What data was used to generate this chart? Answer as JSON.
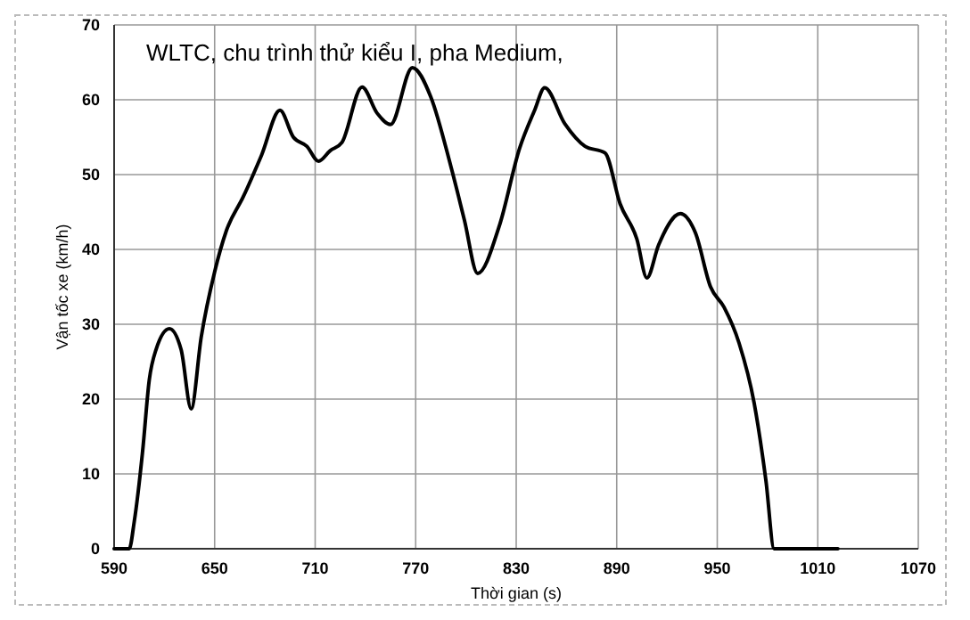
{
  "chart_data": {
    "type": "line",
    "title": "WLTC, chu trình thử kiểu I, pha Medium,",
    "xlabel": "Thời gian (s)",
    "ylabel": "Vận tốc xe (km/h)",
    "x": [
      590,
      599,
      602,
      607,
      611,
      615,
      623,
      630,
      636,
      642,
      650,
      657,
      667,
      678,
      689,
      697,
      705,
      712,
      719,
      726,
      738,
      747,
      755,
      768,
      779,
      791,
      799,
      807,
      820,
      832,
      841,
      847,
      859,
      871,
      883,
      892,
      902,
      908,
      915,
      928,
      937,
      946,
      954,
      963,
      972,
      979,
      984,
      1022
    ],
    "series": [
      {
        "color": "#000000",
        "values": [
          0,
          0,
          3.6,
          13,
          22.6,
          26.6,
          29.4,
          26.6,
          18.7,
          28.3,
          37,
          42.5,
          47,
          52.6,
          58.6,
          55,
          53.8,
          51.8,
          53.2,
          54.3,
          61.7,
          58.2,
          56.7,
          64.3,
          60.4,
          51.1,
          44,
          36.8,
          43.2,
          53.5,
          58.6,
          61.6,
          56.8,
          53.8,
          52.9,
          46.1,
          41.4,
          36.2,
          40.6,
          44.8,
          42.2,
          35,
          32.3,
          27.5,
          19.5,
          9.2,
          0,
          0
        ]
      }
    ],
    "xlim": [
      590,
      1070
    ],
    "xticks": [
      590,
      650,
      710,
      770,
      830,
      890,
      950,
      1010,
      1070
    ],
    "ylim": [
      0,
      70
    ],
    "yticks": [
      0,
      10,
      20,
      30,
      40,
      50,
      60,
      70
    ],
    "grid": true,
    "marker": "none",
    "line_style": "solid"
  }
}
